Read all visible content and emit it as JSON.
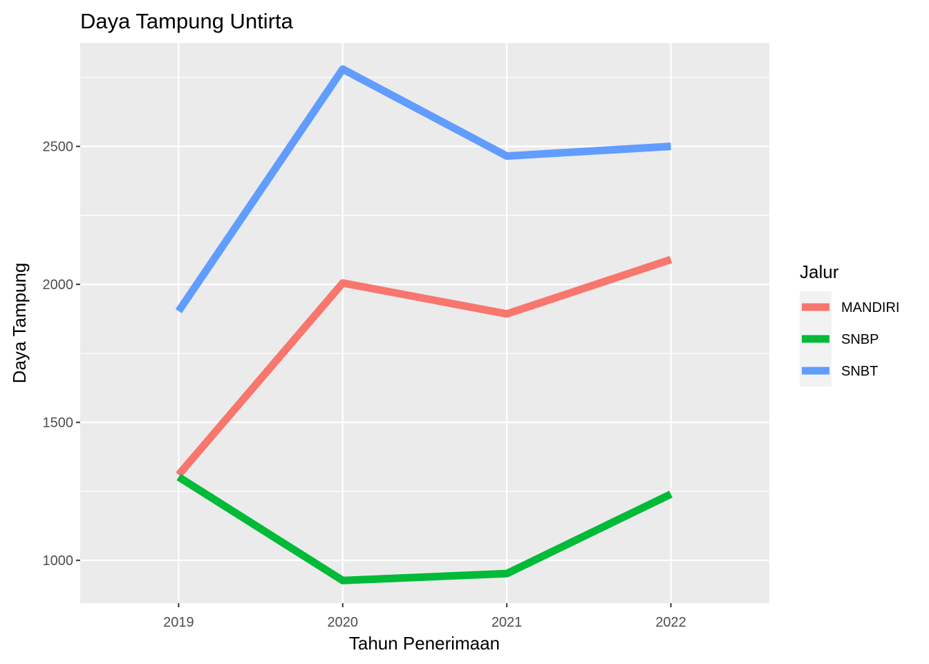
{
  "chart_data": {
    "type": "line",
    "title": "Daya Tampung Untirta",
    "xlabel": "Tahun Penerimaan",
    "ylabel": "Daya Tampung",
    "x": [
      "2019",
      "2020",
      "2021",
      "2022"
    ],
    "y_ticks": [
      "1000",
      "1500",
      "2000",
      "2500"
    ],
    "ylim": [
      845,
      2875
    ],
    "grid": true,
    "legend": {
      "title": "Jalur",
      "position": "right"
    },
    "series": [
      {
        "name": "MANDIRI",
        "color": "#F8766D",
        "values": [
          1310,
          2005,
          1893,
          2090
        ]
      },
      {
        "name": "SNBP",
        "color": "#00BA38",
        "values": [
          1302,
          927,
          952,
          1240
        ]
      },
      {
        "name": "SNBT",
        "color": "#619CFF",
        "values": [
          1903,
          2780,
          2465,
          2500
        ]
      }
    ]
  }
}
